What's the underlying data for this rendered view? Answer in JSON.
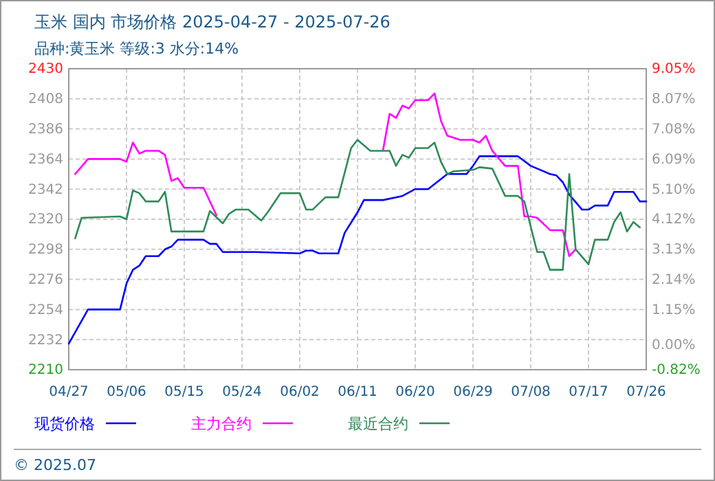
{
  "chart_data": {
    "type": "line",
    "title": "玉米 国内 市场价格 2025-04-27 - 2025-07-26",
    "subtitle": "品种:黄玉米 等级:3 水分:14%",
    "annotations": [
      "© 2025.07"
    ],
    "xlim": [
      "2025-04-27",
      "2025-07-26"
    ],
    "xticks": [
      {
        "value": "2025-04-27",
        "label": "04/27"
      },
      {
        "value": "2025-05-06",
        "label": "05/06"
      },
      {
        "value": "2025-05-15",
        "label": "05/15"
      },
      {
        "value": "2025-05-24",
        "label": "05/24"
      },
      {
        "value": "2025-06-02",
        "label": "06/02"
      },
      {
        "value": "2025-06-11",
        "label": "06/11"
      },
      {
        "value": "2025-06-20",
        "label": "06/20"
      },
      {
        "value": "2025-06-29",
        "label": "06/29"
      },
      {
        "value": "2025-07-08",
        "label": "07/08"
      },
      {
        "value": "2025-07-17",
        "label": "07/17"
      },
      {
        "value": "2025-07-26",
        "label": "07/26"
      }
    ],
    "ylim": [
      2210,
      2430
    ],
    "yticks": [
      2210,
      2232,
      2254,
      2276,
      2298,
      2320,
      2342,
      2364,
      2386,
      2408,
      2430
    ],
    "y2lim": [
      -0.82,
      9.05
    ],
    "y2ticks": [
      {
        "value": -0.82,
        "label": "-0.82%"
      },
      {
        "value": 0,
        "label": "0.00%"
      },
      {
        "value": 1.154,
        "label": "1.15%"
      },
      {
        "value": 2.141,
        "label": "2.14%"
      },
      {
        "value": 3.128,
        "label": "3.13%"
      },
      {
        "value": 4.115,
        "label": "4.12%"
      },
      {
        "value": 5.102,
        "label": "5.10%"
      },
      {
        "value": 6.089,
        "label": "6.09%"
      },
      {
        "value": 7.076,
        "label": "7.08%"
      },
      {
        "value": 8.07,
        "label": "8.07%"
      },
      {
        "value": 9.05,
        "label": "9.05%"
      }
    ],
    "grid": true,
    "legend": "bottom",
    "line_style": "solid",
    "series": [
      {
        "name": "现货价格",
        "color": "#0000ff",
        "x": [
          "2025-04-27",
          "2025-04-30",
          "2025-05-05",
          "2025-05-06",
          "2025-05-07",
          "2025-05-08",
          "2025-05-09",
          "2025-05-11",
          "2025-05-12",
          "2025-05-13",
          "2025-05-14",
          "2025-05-18",
          "2025-05-19",
          "2025-05-20",
          "2025-05-21",
          "2025-05-26",
          "2025-06-02",
          "2025-06-03",
          "2025-06-04",
          "2025-06-05",
          "2025-06-08",
          "2025-06-09",
          "2025-06-11",
          "2025-06-12",
          "2025-06-15",
          "2025-06-18",
          "2025-06-20",
          "2025-06-22",
          "2025-06-25",
          "2025-06-28",
          "2025-06-29",
          "2025-06-30",
          "2025-07-06",
          "2025-07-08",
          "2025-07-11",
          "2025-07-12",
          "2025-07-13",
          "2025-07-14",
          "2025-07-16",
          "2025-07-17",
          "2025-07-18",
          "2025-07-20",
          "2025-07-21",
          "2025-07-24",
          "2025-07-25",
          "2025-07-26"
        ],
        "values": [
          2229,
          2254,
          2254,
          2273,
          2283,
          2286,
          2293,
          2293,
          2298,
          2300,
          2305,
          2305,
          2302,
          2302,
          2296,
          2296,
          2295,
          2297,
          2297,
          2295,
          2295,
          2310,
          2325,
          2334,
          2334,
          2337,
          2342,
          2342,
          2353,
          2353,
          2359,
          2366,
          2366,
          2359,
          2353,
          2352,
          2347,
          2338,
          2327,
          2327,
          2330,
          2330,
          2340,
          2340,
          2333,
          2333
        ]
      },
      {
        "name": "主力合约",
        "color": "#ff00ff",
        "x": [
          "2025-04-28",
          "2025-04-30",
          "2025-05-05",
          "2025-05-06",
          "2025-05-07",
          "2025-05-08",
          "2025-05-09",
          "2025-05-11",
          "2025-05-12",
          "2025-05-13",
          "2025-05-14",
          "2025-05-15",
          "2025-05-18",
          "2025-05-20",
          "2025-06-01",
          "2025-06-15",
          "2025-06-16",
          "2025-06-17",
          "2025-06-18",
          "2025-06-19",
          "2025-06-20",
          "2025-06-22",
          "2025-06-23",
          "2025-06-24",
          "2025-06-25",
          "2025-06-27",
          "2025-06-29",
          "2025-06-30",
          "2025-07-01",
          "2025-07-02",
          "2025-07-04",
          "2025-07-06",
          "2025-07-07",
          "2025-07-08",
          "2025-07-09",
          "2025-07-11",
          "2025-07-13",
          "2025-07-14",
          "2025-07-15"
        ],
        "values": [
          2353,
          2364,
          2364,
          2362,
          2376,
          2368,
          2370,
          2370,
          2367,
          2348,
          2350,
          2343,
          2343,
          2323,
          null,
          2371,
          2397,
          2394,
          2403,
          2401,
          2407,
          2407,
          2412,
          2392,
          2381,
          2378,
          2378,
          2376,
          2381,
          2370,
          2359,
          2359,
          2322,
          2322,
          2321,
          2312,
          2312,
          2293,
          2298
        ]
      },
      {
        "name": "最近合约",
        "color": "#2e8b57",
        "x": [
          "2025-04-28",
          "2025-04-29",
          "2025-05-05",
          "2025-05-06",
          "2025-05-07",
          "2025-05-08",
          "2025-05-09",
          "2025-05-11",
          "2025-05-12",
          "2025-05-13",
          "2025-05-18",
          "2025-05-19",
          "2025-05-21",
          "2025-05-22",
          "2025-05-23",
          "2025-05-25",
          "2025-05-27",
          "2025-05-28",
          "2025-05-30",
          "2025-06-02",
          "2025-06-03",
          "2025-06-04",
          "2025-06-06",
          "2025-06-08",
          "2025-06-10",
          "2025-06-11",
          "2025-06-13",
          "2025-06-16",
          "2025-06-17",
          "2025-06-18",
          "2025-06-19",
          "2025-06-20",
          "2025-06-22",
          "2025-06-23",
          "2025-06-24",
          "2025-06-25",
          "2025-06-26",
          "2025-06-29",
          "2025-06-30",
          "2025-07-02",
          "2025-07-04",
          "2025-07-06",
          "2025-07-07",
          "2025-07-09",
          "2025-07-10",
          "2025-07-11",
          "2025-07-13",
          "2025-07-14",
          "2025-07-15",
          "2025-07-17",
          "2025-07-18",
          "2025-07-20",
          "2025-07-21",
          "2025-07-22",
          "2025-07-23",
          "2025-07-24",
          "2025-07-25"
        ],
        "values": [
          2306,
          2321,
          2322,
          2320,
          2341,
          2339,
          2333,
          2333,
          2340,
          2311,
          2311,
          2326,
          2317,
          2324,
          2327,
          2327,
          2319,
          2325,
          2339,
          2339,
          2327,
          2327,
          2336,
          2336,
          2372,
          2378,
          2370,
          2370,
          2359,
          2367,
          2365,
          2372,
          2372,
          2376,
          2362,
          2353,
          2355,
          2356,
          2358,
          2357,
          2337,
          2337,
          2333,
          2296,
          2296,
          2283,
          2283,
          2353,
          2298,
          2287,
          2305,
          2305,
          2318,
          2325,
          2311,
          2318,
          2314
        ]
      }
    ]
  }
}
